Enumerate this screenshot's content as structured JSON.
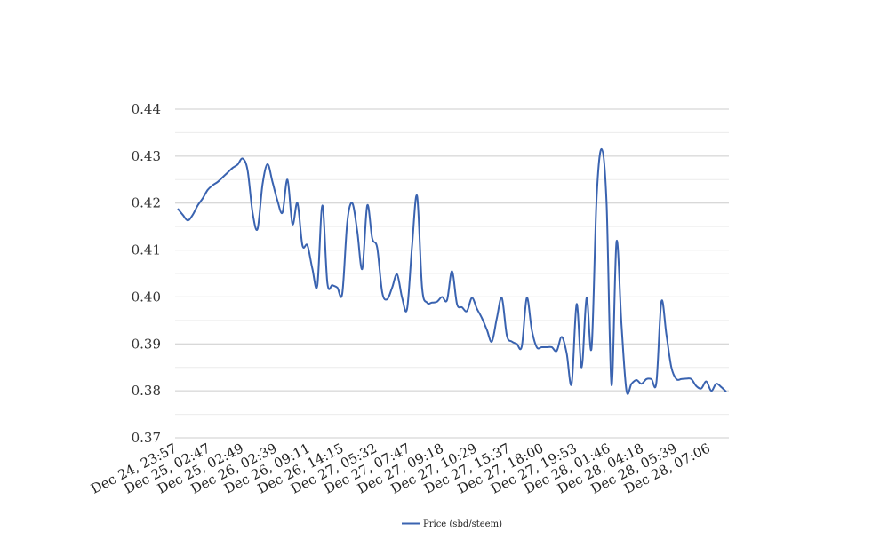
{
  "chart_data": {
    "type": "line",
    "title": "",
    "xlabel": "",
    "ylabel": "",
    "ylim": [
      0.37,
      0.44
    ],
    "yticks": [
      "0.37",
      "0.38",
      "0.39",
      "0.40",
      "0.41",
      "0.42",
      "0.43",
      "0.44"
    ],
    "x_tick_labels": [
      "Dec 24, 23:57",
      "Dec 25, 02:47",
      "Dec 25, 02:49",
      "Dec 26, 02:39",
      "Dec 26, 09:11",
      "Dec 26, 14:15",
      "Dec 27, 05:32",
      "Dec 27, 07:47",
      "Dec 27, 09:18",
      "Dec 27, 10:29",
      "Dec 27, 15:37",
      "Dec 27, 18:00",
      "Dec 27, 19:53",
      "Dec 28, 01:46",
      "Dec 28, 04:18",
      "Dec 28, 05:39",
      "Dec 28, 07:06"
    ],
    "grid": true,
    "legend_position": "bottom",
    "series": [
      {
        "name": "Price (sbd/steem)",
        "color": "#3a63b0",
        "values": [
          0.4188,
          0.4175,
          0.4163,
          0.4175,
          0.4195,
          0.421,
          0.4228,
          0.4238,
          0.4245,
          0.4255,
          0.4265,
          0.4275,
          0.4282,
          0.4295,
          0.427,
          0.418,
          0.4145,
          0.424,
          0.4283,
          0.4245,
          0.4205,
          0.418,
          0.425,
          0.4155,
          0.42,
          0.411,
          0.411,
          0.406,
          0.4025,
          0.4195,
          0.403,
          0.4025,
          0.402,
          0.4008,
          0.416,
          0.42,
          0.414,
          0.406,
          0.4195,
          0.4125,
          0.4105,
          0.401,
          0.3995,
          0.402,
          0.4048,
          0.3998,
          0.3975,
          0.411,
          0.4215,
          0.402,
          0.3988,
          0.3988,
          0.399,
          0.4,
          0.3993,
          0.4055,
          0.3985,
          0.3978,
          0.397,
          0.3998,
          0.3975,
          0.3955,
          0.393,
          0.3905,
          0.3955,
          0.3998,
          0.3918,
          0.3905,
          0.39,
          0.3895,
          0.3998,
          0.393,
          0.3893,
          0.3893,
          0.3893,
          0.3893,
          0.3885,
          0.3915,
          0.388,
          0.3815,
          0.3985,
          0.385,
          0.3998,
          0.3892,
          0.421,
          0.4315,
          0.42,
          0.3812,
          0.4118,
          0.394,
          0.38,
          0.3815,
          0.3823,
          0.3815,
          0.3825,
          0.3825,
          0.3818,
          0.399,
          0.392,
          0.385,
          0.3825,
          0.3825,
          0.3826,
          0.3825,
          0.381,
          0.3805,
          0.382,
          0.38,
          0.3815,
          0.3808,
          0.3798
        ]
      }
    ]
  }
}
